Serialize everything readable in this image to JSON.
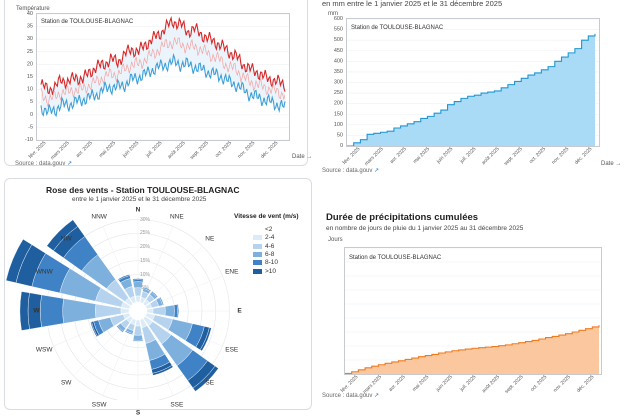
{
  "colors": {
    "temp_max": "#d62728",
    "temp_mid": "#f4a3a3",
    "temp_min": "#3e9fd6",
    "temp_min_light": "#a7d3f0",
    "rain_line": "#2196d3",
    "rain_fill": "#a9dbf6",
    "rose_1": "#dcebf8",
    "rose_2": "#b5d3ee",
    "rose_3": "#7eb0de",
    "rose_4": "#3f82c5",
    "rose_5": "#1f5f9f",
    "precip_line": "#f07b1e",
    "precip_fill": "#fac79e"
  },
  "temperature": {
    "ylabel": "Température",
    "station": "Station de TOULOUSE-BLAGNAC",
    "xunit": "Date →",
    "source": "Source : data.gouv",
    "icon": "external-link-icon",
    "chart_data": {
      "type": "line",
      "ylim": [
        -10,
        40
      ],
      "yticks": [
        40,
        35,
        30,
        25,
        20,
        15,
        10,
        5,
        0,
        -5,
        -10
      ],
      "x_ticks": [
        "févr. 2025",
        "mars 2025",
        "avr. 2025",
        "mai 2025",
        "juin 2025",
        "juil. 2025",
        "août 2025",
        "sept. 2025",
        "oct. 2025",
        "nov. 2025",
        "déc. 2025"
      ],
      "series": [
        {
          "values": [
            12,
            10,
            11,
            14,
            13,
            15,
            14,
            17,
            19,
            20,
            22,
            21,
            24,
            26,
            25,
            28,
            30,
            32,
            35,
            37,
            36,
            33,
            34,
            32,
            30,
            29,
            27,
            25,
            23,
            20,
            18,
            17,
            15,
            14,
            13,
            12
          ]
        },
        {
          "values": [
            8,
            6,
            7,
            9,
            9,
            10,
            10,
            12,
            13,
            15,
            16,
            16,
            18,
            20,
            20,
            22,
            24,
            26,
            28,
            29,
            28,
            27,
            27,
            26,
            24,
            23,
            21,
            19,
            18,
            15,
            13,
            12,
            11,
            10,
            9,
            8
          ]
        },
        {
          "values": [
            3,
            1,
            2,
            4,
            4,
            5,
            6,
            7,
            8,
            10,
            11,
            11,
            12,
            14,
            15,
            16,
            18,
            19,
            20,
            21,
            20,
            20,
            19,
            18,
            17,
            16,
            15,
            13,
            12,
            10,
            8,
            7,
            6,
            5,
            4,
            3
          ]
        }
      ]
    }
  },
  "rain": {
    "title": "en mm entre le 1 janvier 2025 et le 31 décembre 2025",
    "yunit": "mm",
    "station": "Station de TOULOUSE-BLAGNAC",
    "xunit": "Date →",
    "source": "Source : data.gouv",
    "icon": "external-link-icon",
    "chart_data": {
      "type": "area",
      "ylim": [
        0,
        600
      ],
      "yticks": [
        600,
        550,
        500,
        450,
        400,
        350,
        300,
        250,
        200,
        150,
        100,
        50,
        0
      ],
      "x_ticks": [
        "févr. 2025",
        "mars 2025",
        "avr. 2025",
        "mai 2025",
        "juin 2025",
        "juil. 2025",
        "août 2025",
        "sept. 2025",
        "oct. 2025",
        "nov. 2025",
        "déc. 2025"
      ],
      "values": [
        0,
        15,
        30,
        55,
        60,
        65,
        70,
        85,
        95,
        105,
        115,
        130,
        140,
        155,
        170,
        195,
        210,
        225,
        235,
        240,
        250,
        255,
        260,
        275,
        290,
        305,
        320,
        335,
        345,
        360,
        375,
        400,
        420,
        440,
        460,
        500,
        520,
        530
      ]
    }
  },
  "rose": {
    "title": "Rose des vents - Station TOULOUSE-BLAGNAC",
    "subtitle": "entre le 1 janvier 2025 et le 31 décembre 2025",
    "legend_title": "Vitesse de vent (m/s)",
    "legend": [
      "<2",
      "2-4",
      "4-6",
      "6-8",
      "8-10",
      ">10"
    ],
    "directions": [
      "N",
      "NNE",
      "NE",
      "ENE",
      "E",
      "ESE",
      "SE",
      "SSE",
      "S",
      "SSW",
      "SW",
      "WSW",
      "W",
      "WNW",
      "NW",
      "NNW"
    ],
    "pct_labels": [
      "30%",
      "25%",
      "20%",
      "15%",
      "10%",
      "5%"
    ],
    "chart_data": {
      "type": "bar",
      "categories": [
        "N",
        "NNE",
        "NE",
        "ENE",
        "E",
        "ESE",
        "SE",
        "SSE",
        "S",
        "SSW",
        "SW",
        "WSW",
        "W",
        "WNW",
        "NW",
        "NNW"
      ],
      "series": [
        {
          "name": "<2",
          "values": [
            0.6,
            0.5,
            0.5,
            0.5,
            0.6,
            0.8,
            0.9,
            0.8,
            0.6,
            0.5,
            0.5,
            0.6,
            0.8,
            0.8,
            0.7,
            0.6
          ]
        },
        {
          "name": "2-4",
          "values": [
            0.8,
            0.6,
            0.6,
            0.7,
            1.2,
            1.8,
            2.2,
            1.6,
            0.9,
            0.6,
            0.7,
            1.3,
            2.5,
            2.6,
            2.2,
            1.0
          ]
        },
        {
          "name": "4-6",
          "values": [
            0.6,
            0.3,
            0.3,
            0.4,
            0.9,
            2.0,
            2.6,
            1.7,
            0.5,
            0.3,
            0.4,
            1.2,
            3.2,
            3.6,
            3.0,
            0.8
          ]
        },
        {
          "name": "6-8",
          "values": [
            0.2,
            0.1,
            0.1,
            0.1,
            0.3,
            1.2,
            1.8,
            0.9,
            0.1,
            0.1,
            0.1,
            0.5,
            2.2,
            2.8,
            2.2,
            0.3
          ]
        },
        {
          "name": "8-10",
          "values": [
            0.1,
            0.0,
            0.0,
            0.0,
            0.1,
            0.5,
            0.9,
            0.4,
            0.0,
            0.0,
            0.0,
            0.2,
            1.2,
            1.6,
            1.2,
            0.1
          ]
        },
        {
          "name": ">10",
          "values": [
            0.0,
            0.0,
            0.0,
            0.0,
            0.0,
            0.2,
            0.4,
            0.2,
            0.0,
            0.0,
            0.0,
            0.1,
            0.8,
            1.0,
            0.8,
            0.0
          ]
        }
      ]
    }
  },
  "precip": {
    "title": "Durée de précipitations cumulées",
    "subtitle": "en nombre de jours de pluie du 1 janvier 2025 au 31 décembre 2025",
    "yunit": "Jours",
    "station": "Station de TOULOUSE-BLAGNAC",
    "source": "Source : data.gouv",
    "chart_data": {
      "type": "area",
      "x_ticks": [
        "févr. 2025",
        "mars 2025",
        "avr. 2025",
        "mai 2025",
        "juin 2025",
        "juil. 2025",
        "août 2025",
        "sept. 2025",
        "oct. 2025",
        "nov. 2025",
        "déc. 2025"
      ],
      "values": [
        0.2,
        0.8,
        1.5,
        2.2,
        2.8,
        3.3,
        3.8,
        4.3,
        4.7,
        5.2,
        5.7,
        6.2,
        6.6,
        7.0,
        7.5,
        7.9,
        8.3,
        8.6,
        8.9,
        9.2,
        9.4,
        9.6,
        9.8,
        10.1,
        10.4,
        10.8,
        11.2,
        11.6,
        12.0,
        12.5,
        13.0,
        13.4,
        13.9,
        14.4,
        15.0,
        15.6,
        16.2,
        16.8,
        17.4
      ]
    }
  }
}
